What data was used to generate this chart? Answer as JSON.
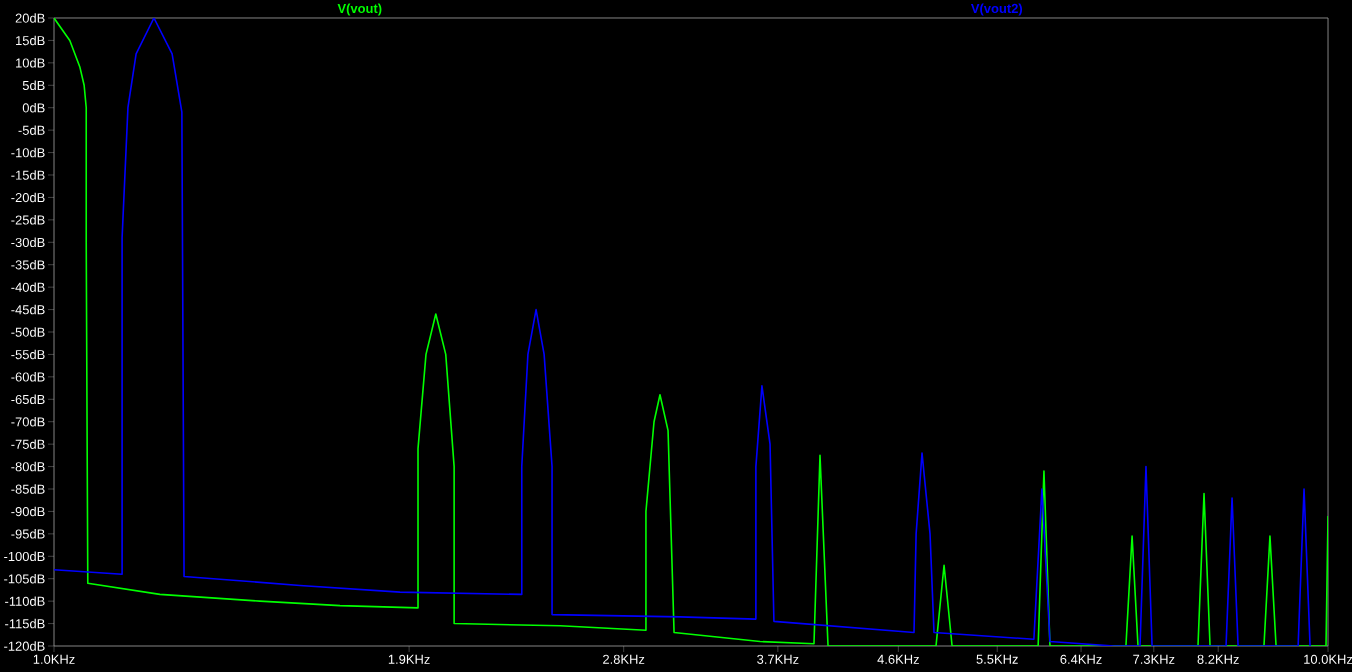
{
  "chart_data": {
    "type": "line",
    "log": "x",
    "legend": "top",
    "xlim": [
      1.0,
      10.0
    ],
    "ylim": [
      -120,
      20
    ],
    "xticks": [
      {
        "value": 1.0,
        "label": "1.0KHz"
      },
      {
        "value": 1.9,
        "label": "1.9KHz"
      },
      {
        "value": 2.8,
        "label": "2.8KHz"
      },
      {
        "value": 3.7,
        "label": "3.7KHz"
      },
      {
        "value": 4.6,
        "label": "4.6KHz"
      },
      {
        "value": 5.5,
        "label": "5.5KHz"
      },
      {
        "value": 6.4,
        "label": "6.4KHz"
      },
      {
        "value": 7.3,
        "label": "7.3KHz"
      },
      {
        "value": 8.2,
        "label": "8.2KHz"
      },
      {
        "value": 10.0,
        "label": "10.0KHz"
      }
    ],
    "yticks": [
      {
        "value": 20,
        "label": "20dB"
      },
      {
        "value": 15,
        "label": "15dB"
      },
      {
        "value": 10,
        "label": "10dB"
      },
      {
        "value": 5,
        "label": "5dB"
      },
      {
        "value": 0,
        "label": "0dB"
      },
      {
        "value": -5,
        "label": "-5dB"
      },
      {
        "value": -10,
        "label": "-10dB"
      },
      {
        "value": -15,
        "label": "-15dB"
      },
      {
        "value": -20,
        "label": "-20dB"
      },
      {
        "value": -25,
        "label": "-25dB"
      },
      {
        "value": -30,
        "label": "-30dB"
      },
      {
        "value": -35,
        "label": "-35dB"
      },
      {
        "value": -40,
        "label": "-40dB"
      },
      {
        "value": -45,
        "label": "-45dB"
      },
      {
        "value": -50,
        "label": "-50dB"
      },
      {
        "value": -55,
        "label": "-55dB"
      },
      {
        "value": -60,
        "label": "-60dB"
      },
      {
        "value": -65,
        "label": "-65dB"
      },
      {
        "value": -70,
        "label": "-70dB"
      },
      {
        "value": -75,
        "label": "-75dB"
      },
      {
        "value": -80,
        "label": "-80dB"
      },
      {
        "value": -85,
        "label": "-85dB"
      },
      {
        "value": -90,
        "label": "-90dB"
      },
      {
        "value": -95,
        "label": "-95dB"
      },
      {
        "value": -100,
        "label": "-100dB"
      },
      {
        "value": -105,
        "label": "-105dB"
      },
      {
        "value": -110,
        "label": "-110dB"
      },
      {
        "value": -115,
        "label": "-115dB"
      },
      {
        "value": -120,
        "label": "-120dB"
      }
    ],
    "series": [
      {
        "name": "V(vout)",
        "color": "#00ff00",
        "x": [
          1.0,
          1.029,
          1.048,
          1.056,
          1.06,
          1.06,
          1.063,
          1.211,
          1.451,
          1.677,
          1.931,
          1.931,
          1.959,
          1.994,
          2.03,
          2.061,
          2.061,
          2.496,
          2.915,
          2.915,
          2.958,
          2.99,
          3.034,
          3.067,
          3.583,
          3.95,
          3.993,
          4.051,
          4.924,
          4.996,
          5.069,
          5.922,
          5.985,
          6.05,
          6.941,
          7.018,
          7.094,
          7.907,
          7.993,
          8.08,
          8.907,
          9.004,
          9.104,
          9.964,
          10.0
        ],
        "values": [
          20,
          15,
          9,
          5,
          0,
          -30,
          -106,
          -108.5,
          -110,
          -111,
          -111.5,
          -76,
          -55,
          -46,
          -55,
          -80,
          -115,
          -115.5,
          -116.5,
          -90,
          -70,
          -64,
          -72,
          -117,
          -119,
          -119.5,
          -77.5,
          -120,
          -120,
          -102,
          -120,
          -120,
          -81,
          -120,
          -120,
          -95.5,
          -120,
          -120,
          -86,
          -120,
          -120,
          -95.5,
          -120,
          -120,
          -91
        ]
      },
      {
        "name": "V(vout2)",
        "color": "#0000ff",
        "x": [
          1.0,
          1.131,
          1.131,
          1.143,
          1.16,
          1.198,
          1.238,
          1.26,
          1.265,
          1.56,
          1.869,
          2.329,
          2.329,
          2.355,
          2.39,
          2.425,
          2.46,
          2.46,
          3.1,
          3.556,
          3.556,
          3.595,
          3.648,
          3.674,
          4.732,
          4.75,
          4.801,
          4.871,
          4.906,
          5.877,
          5.963,
          6.05,
          6.792,
          7.12,
          7.197,
          7.277,
          8.317,
          8.408,
          8.5,
          9.474,
          9.576,
          9.681
        ],
        "values": [
          -103,
          -104,
          -29,
          0,
          12,
          20,
          12,
          -1,
          -104.5,
          -106.5,
          -108,
          -108.5,
          -80,
          -55,
          -45,
          -55,
          -80,
          -113,
          -113.5,
          -114,
          -80,
          -62,
          -75,
          -114.5,
          -117,
          -95,
          -77,
          -95,
          -117,
          -118.5,
          -85,
          -119,
          -120,
          -120,
          -80,
          -120,
          -120,
          -87,
          -120,
          -120,
          -85,
          -120
        ]
      }
    ]
  }
}
